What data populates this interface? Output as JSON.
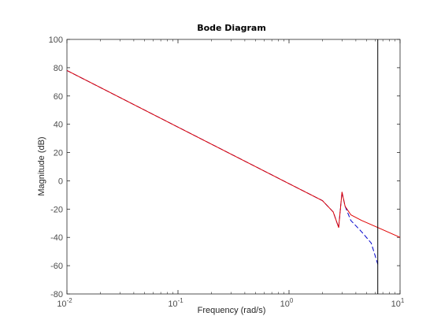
{
  "chart_data": {
    "type": "line",
    "title": "Bode Diagram",
    "xlabel": "Frequency  (rad/s)",
    "ylabel": "Magnitude (dB)",
    "xscale": "log",
    "xlim": [
      0.01,
      10
    ],
    "ylim": [
      -80,
      100
    ],
    "grid": false,
    "yticks": [
      -80,
      -60,
      -40,
      -20,
      0,
      20,
      40,
      60,
      80,
      100
    ],
    "xticks": [
      {
        "base": "10",
        "exp": "-2",
        "value": 0.01
      },
      {
        "base": "10",
        "exp": "-1",
        "value": 0.1
      },
      {
        "base": "10",
        "exp": "0",
        "value": 1
      },
      {
        "base": "10",
        "exp": "1",
        "value": 10
      }
    ],
    "vline": {
      "x": 6.3,
      "color": "#000000"
    },
    "series": [
      {
        "style": "dashed",
        "color": "#0000cc",
        "points": [
          [
            0.01,
            78
          ],
          [
            0.1,
            38
          ],
          [
            1,
            -2
          ],
          [
            2,
            -14
          ],
          [
            2.5,
            -22
          ],
          [
            2.8,
            -33
          ],
          [
            3.0,
            -8
          ],
          [
            3.2,
            -18
          ],
          [
            3.6,
            -28
          ],
          [
            4.5,
            -36
          ],
          [
            5.5,
            -44
          ],
          [
            6.3,
            -59
          ]
        ]
      },
      {
        "style": "solid",
        "color": "#e00000",
        "points": [
          [
            0.01,
            78
          ],
          [
            0.1,
            38
          ],
          [
            1,
            -2
          ],
          [
            2,
            -14
          ],
          [
            2.5,
            -22
          ],
          [
            2.8,
            -33
          ],
          [
            3.0,
            -8
          ],
          [
            3.2,
            -18
          ],
          [
            3.6,
            -24
          ],
          [
            4.5,
            -28
          ],
          [
            6.3,
            -33
          ],
          [
            10,
            -40
          ]
        ]
      }
    ]
  }
}
